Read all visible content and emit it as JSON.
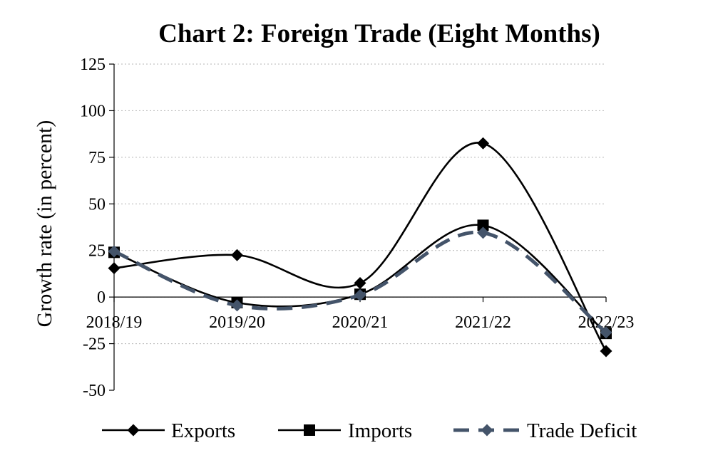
{
  "chart_data": {
    "type": "line",
    "title": "Chart 2: Foreign Trade (Eight Months)",
    "xlabel": "",
    "ylabel": "Growth rate (in percent)",
    "categories": [
      "2018/19",
      "2019/20",
      "2020/21",
      "2021/22",
      "2022/23"
    ],
    "ylim": [
      -50,
      125
    ],
    "yticks": [
      -50,
      -25,
      0,
      25,
      50,
      75,
      100,
      125
    ],
    "grid": "horizontal dotted",
    "legend": "bottom",
    "series": [
      {
        "name": "Exports",
        "values": [
          15.5,
          22.5,
          7.5,
          82.5,
          -29.0
        ],
        "color": "#000000",
        "marker": "diamond",
        "dash": "solid"
      },
      {
        "name": "Imports",
        "values": [
          24.0,
          -3.0,
          1.5,
          38.5,
          -19.5
        ],
        "color": "#000000",
        "marker": "square",
        "dash": "solid"
      },
      {
        "name": "Trade Deficit",
        "values": [
          24.5,
          -4.5,
          1.0,
          34.5,
          -19.0
        ],
        "color": "#44546a",
        "marker": "diamond",
        "dash": "dashed"
      }
    ]
  }
}
